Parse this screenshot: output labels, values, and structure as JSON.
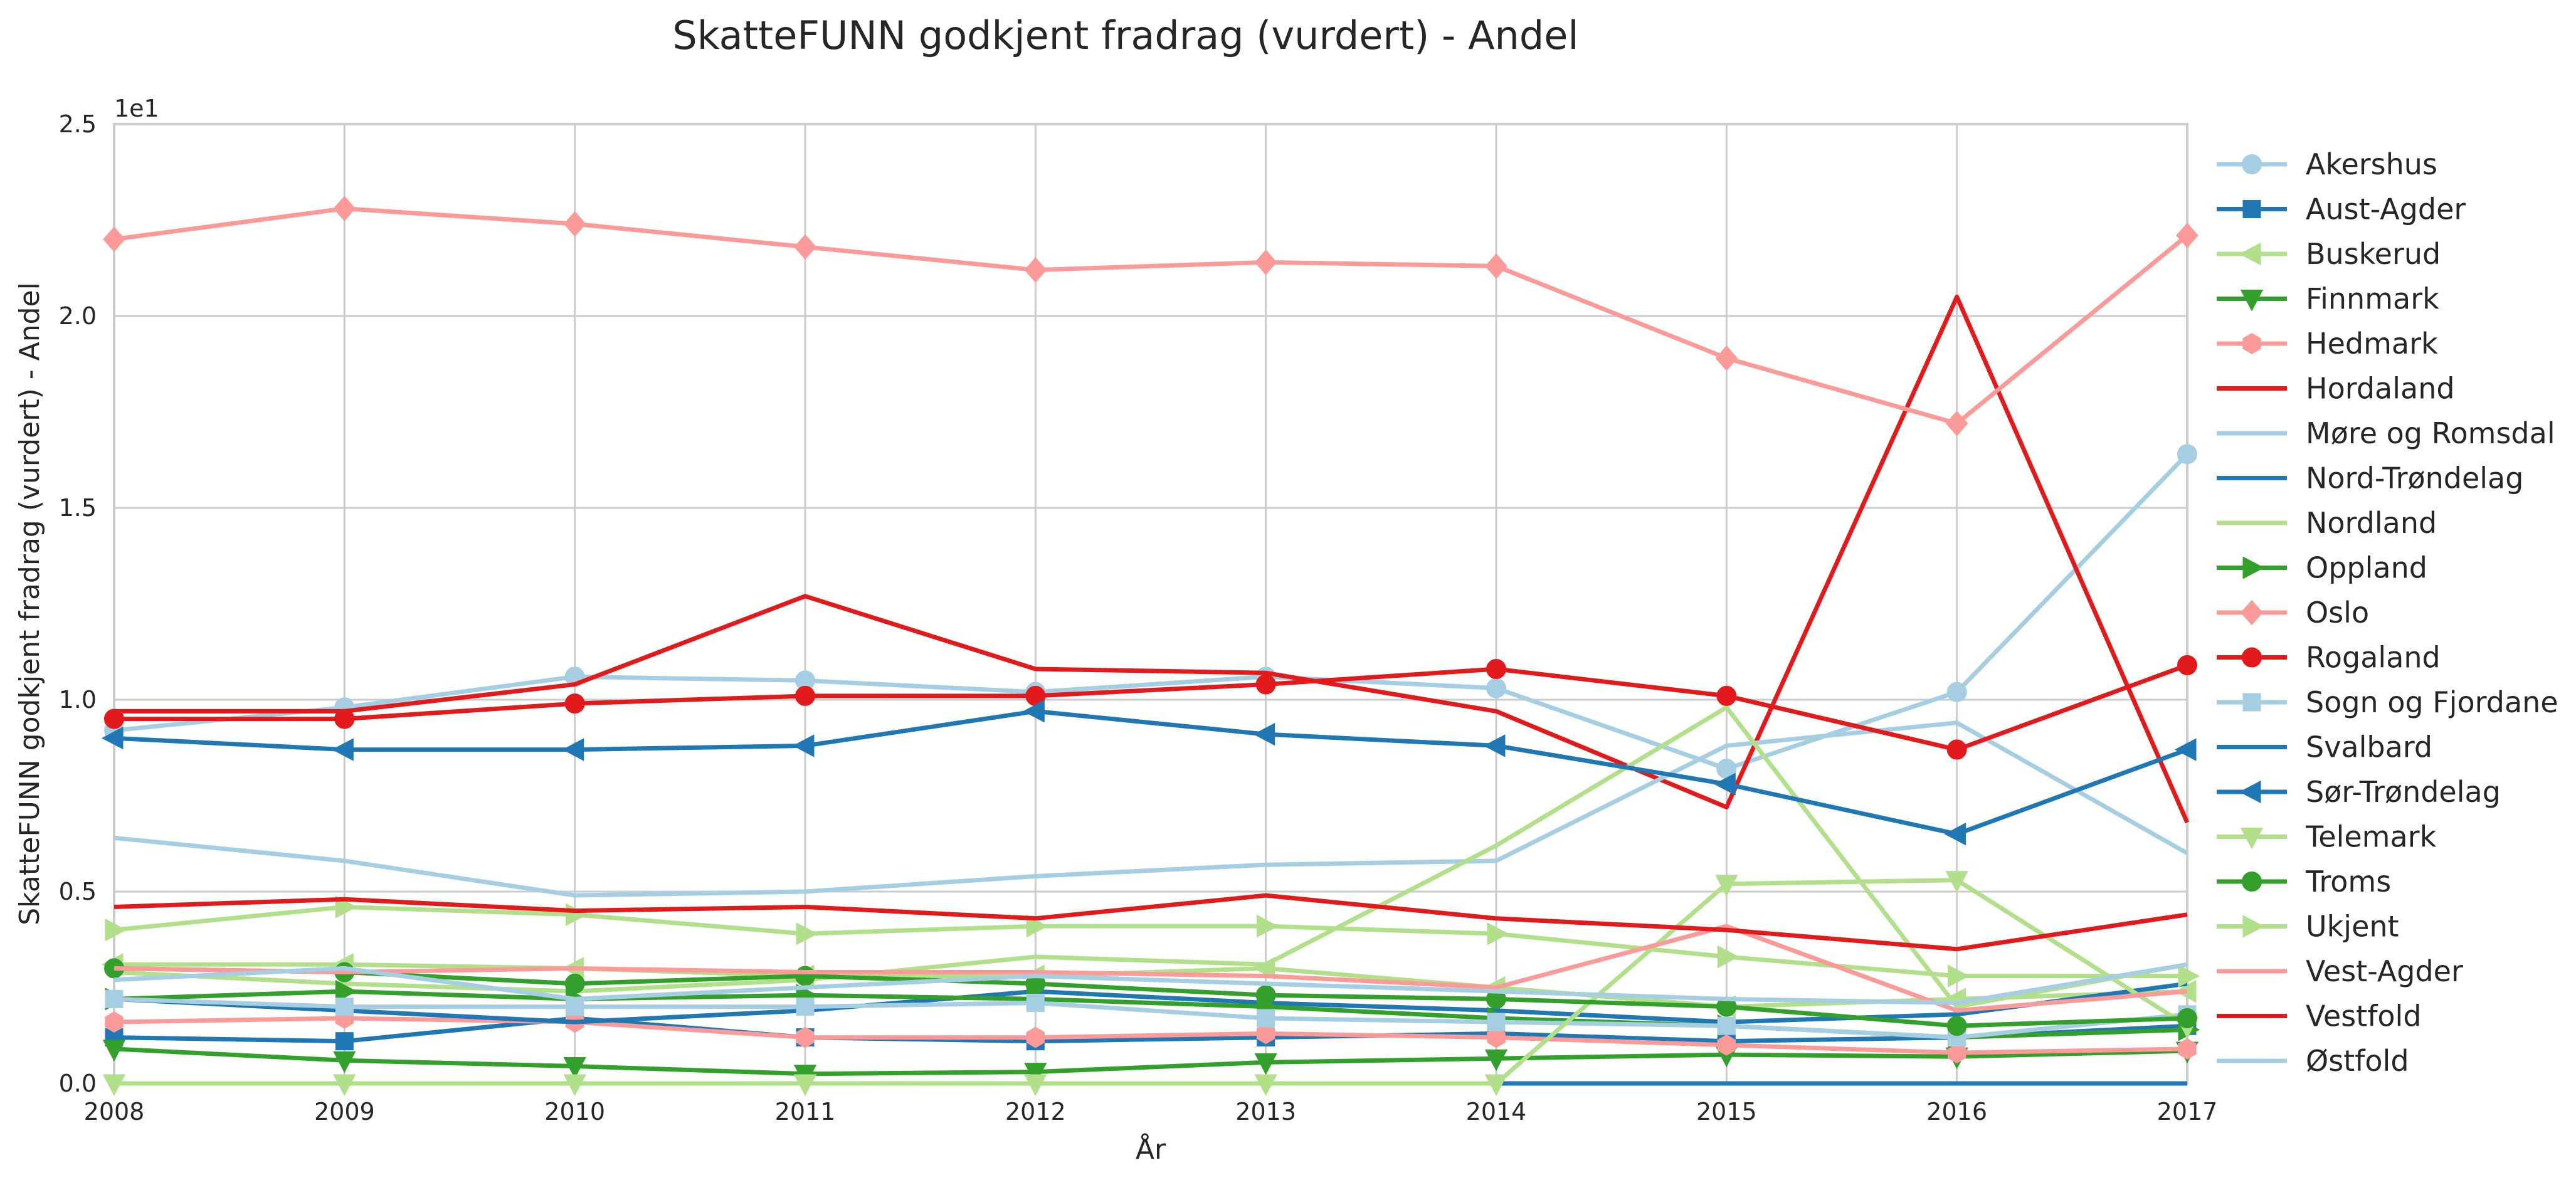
{
  "chart_data": {
    "type": "line",
    "title": "SkatteFUNN godkjent fradrag (vurdert) - Andel",
    "xlabel": "År",
    "ylabel": "SkatteFUNN godkjent fradrag (vurdert) - Andel",
    "scale_label": "1e1",
    "x": [
      2008,
      2009,
      2010,
      2011,
      2012,
      2013,
      2014,
      2015,
      2016,
      2017
    ],
    "x_tick_labels": [
      "2008",
      "2009",
      "2010",
      "2011",
      "2012",
      "2013",
      "2014",
      "2015",
      "2016",
      "2017"
    ],
    "y_ticks": [
      0,
      0.5,
      1.0,
      1.5,
      2.0,
      2.5
    ],
    "y_tick_labels": [
      "0.0",
      "0.5",
      "1.0",
      "1.5",
      "2.0",
      "2.5"
    ],
    "ylim": [
      0,
      2.5
    ],
    "xlim": [
      2008,
      2017
    ],
    "grid": true,
    "legend_position": "right-outside",
    "series": [
      {
        "name": "Akershus",
        "color": "#a6cee3",
        "marker": "circle",
        "values": [
          0.92,
          0.98,
          1.06,
          1.05,
          1.02,
          1.06,
          1.03,
          0.82,
          1.02,
          1.64
        ]
      },
      {
        "name": "Aust-Agder",
        "color": "#1f78b4",
        "marker": "square",
        "values": [
          0.12,
          0.11,
          0.17,
          0.12,
          0.11,
          0.12,
          0.13,
          0.11,
          0.12,
          0.15
        ]
      },
      {
        "name": "Buskerud",
        "color": "#b2df8a",
        "marker": "triangle-left",
        "values": [
          0.31,
          0.31,
          0.3,
          0.28,
          0.28,
          0.3,
          0.25,
          0.2,
          0.22,
          0.24
        ]
      },
      {
        "name": "Finnmark",
        "color": "#33a02c",
        "marker": "triangle-down",
        "values": [
          0.09,
          0.06,
          0.045,
          0.025,
          0.03,
          0.055,
          0.065,
          0.075,
          0.07,
          0.085
        ]
      },
      {
        "name": "Hedmark",
        "color": "#fb9a99",
        "marker": "hexagon",
        "values": [
          0.16,
          0.17,
          0.16,
          0.12,
          0.12,
          0.13,
          0.12,
          0.1,
          0.08,
          0.09
        ]
      },
      {
        "name": "Hordaland",
        "color": "#e31a1c",
        "marker": "none",
        "values": [
          0.97,
          0.97,
          1.04,
          1.27,
          1.08,
          1.07,
          0.97,
          0.72,
          2.05,
          0.68
        ]
      },
      {
        "name": "Møre og Romsdal",
        "color": "#a6cee3",
        "marker": "none",
        "values": [
          0.64,
          0.58,
          0.49,
          0.5,
          0.54,
          0.57,
          0.58,
          0.88,
          0.94,
          0.6
        ]
      },
      {
        "name": "Nord-Trøndelag",
        "color": "#1f78b4",
        "marker": "none",
        "values": [
          0.22,
          0.19,
          0.16,
          0.19,
          0.24,
          0.21,
          0.19,
          0.16,
          0.18,
          0.26
        ]
      },
      {
        "name": "Nordland",
        "color": "#b2df8a",
        "marker": "none",
        "values": [
          0.29,
          0.26,
          0.24,
          0.27,
          0.33,
          0.31,
          0.62,
          0.98,
          0.2,
          0.31
        ]
      },
      {
        "name": "Oppland",
        "color": "#33a02c",
        "marker": "triangle-right",
        "values": [
          0.22,
          0.24,
          0.22,
          0.23,
          0.22,
          0.2,
          0.17,
          0.15,
          0.12,
          0.14
        ]
      },
      {
        "name": "Oslo",
        "color": "#fb9a99",
        "marker": "diamond",
        "values": [
          2.2,
          2.28,
          2.24,
          2.18,
          2.12,
          2.14,
          2.13,
          1.89,
          1.72,
          2.21
        ]
      },
      {
        "name": "Rogaland",
        "color": "#e31a1c",
        "marker": "circle",
        "values": [
          0.95,
          0.95,
          0.99,
          1.01,
          1.01,
          1.04,
          1.08,
          1.01,
          0.87,
          1.09
        ]
      },
      {
        "name": "Sogn og Fjordane",
        "color": "#a6cee3",
        "marker": "square",
        "values": [
          0.22,
          0.2,
          0.2,
          0.2,
          0.21,
          0.17,
          0.16,
          0.15,
          0.12,
          0.18
        ]
      },
      {
        "name": "Svalbard",
        "color": "#1f78b4",
        "marker": "none",
        "values": [
          0.0,
          0.0,
          0.0,
          0.0,
          0.0,
          0.0,
          0.0,
          0.0,
          0.0,
          0.0
        ]
      },
      {
        "name": "Sør-Trøndelag",
        "color": "#1f78b4",
        "marker": "triangle-left",
        "values": [
          0.9,
          0.87,
          0.87,
          0.88,
          0.97,
          0.91,
          0.88,
          0.78,
          0.65,
          0.87
        ]
      },
      {
        "name": "Telemark",
        "color": "#b2df8a",
        "marker": "triangle-down",
        "values": [
          0.0,
          0.0,
          0.0,
          0.0,
          0.0,
          0.0,
          0.0,
          0.52,
          0.53,
          0.15
        ]
      },
      {
        "name": "Troms",
        "color": "#33a02c",
        "marker": "circle",
        "values": [
          0.3,
          0.29,
          0.26,
          0.28,
          0.26,
          0.23,
          0.22,
          0.2,
          0.15,
          0.17
        ]
      },
      {
        "name": "Ukjent",
        "color": "#b2df8a",
        "marker": "triangle-right",
        "values": [
          0.4,
          0.46,
          0.44,
          0.39,
          0.41,
          0.41,
          0.39,
          0.33,
          0.28,
          0.28
        ]
      },
      {
        "name": "Vest-Agder",
        "color": "#fb9a99",
        "marker": "none",
        "values": [
          0.3,
          0.29,
          0.3,
          0.29,
          0.29,
          0.28,
          0.25,
          0.41,
          0.19,
          0.24
        ]
      },
      {
        "name": "Vestfold",
        "color": "#e31a1c",
        "marker": "none",
        "values": [
          0.46,
          0.48,
          0.45,
          0.46,
          0.43,
          0.49,
          0.43,
          0.4,
          0.35,
          0.44
        ]
      },
      {
        "name": "Østfold",
        "color": "#a6cee3",
        "marker": "none",
        "values": [
          0.27,
          0.3,
          0.22,
          0.25,
          0.28,
          0.26,
          0.24,
          0.22,
          0.21,
          0.31
        ]
      }
    ]
  }
}
